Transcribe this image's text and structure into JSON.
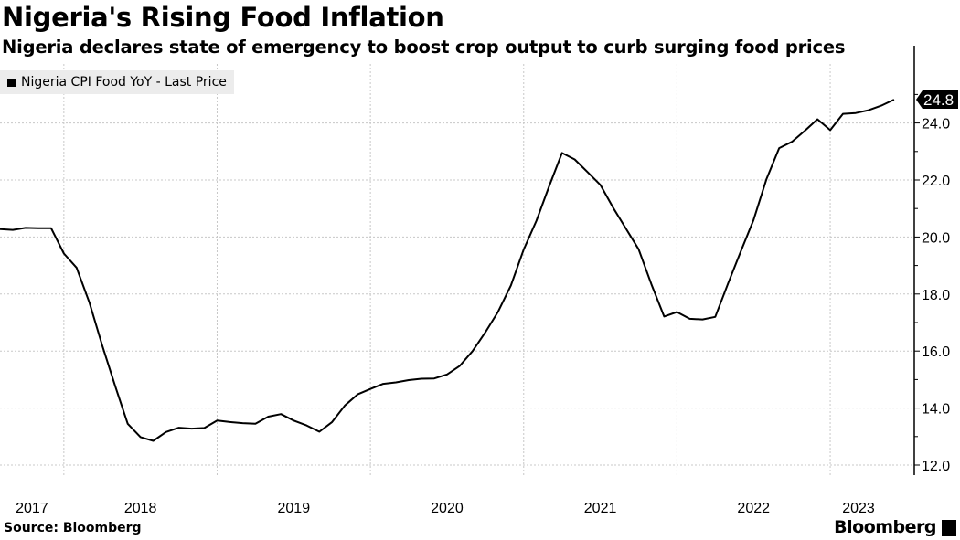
{
  "title": "Nigeria's Rising Food Inflation",
  "subtitle": "Nigeria declares state of emergency to boost crop output to curb surging food prices",
  "source": "Source: Bloomberg",
  "brand": "Bloomberg",
  "chart_data": {
    "type": "line",
    "legend": "Nigeria CPI Food YoY - Last Price",
    "legend_placement": "top-left",
    "last_value_label": "24.8",
    "line_color": "#000000",
    "grid": true,
    "y_axis_side": "right",
    "ylim": [
      11.7,
      25.2
    ],
    "yticks": [
      "12.0",
      "14.0",
      "16.0",
      "18.0",
      "20.0",
      "22.0",
      "24.0"
    ],
    "xtick_labels": [
      "2017",
      "2018",
      "2019",
      "2020",
      "2021",
      "2022",
      "2023"
    ],
    "x_start": "2017-07",
    "x_end": "2023-05",
    "series": [
      {
        "name": "Nigeria CPI Food YoY - Last Price",
        "x": [
          "2017-07",
          "2017-08",
          "2017-09",
          "2017-10",
          "2017-11",
          "2017-12",
          "2018-01",
          "2018-02",
          "2018-03",
          "2018-04",
          "2018-05",
          "2018-06",
          "2018-07",
          "2018-08",
          "2018-09",
          "2018-10",
          "2018-11",
          "2018-12",
          "2019-01",
          "2019-02",
          "2019-03",
          "2019-04",
          "2019-05",
          "2019-06",
          "2019-07",
          "2019-08",
          "2019-09",
          "2019-10",
          "2019-11",
          "2019-12",
          "2020-01",
          "2020-02",
          "2020-03",
          "2020-04",
          "2020-05",
          "2020-06",
          "2020-07",
          "2020-08",
          "2020-09",
          "2020-10",
          "2020-11",
          "2020-12",
          "2021-01",
          "2021-02",
          "2021-03",
          "2021-04",
          "2021-05",
          "2021-06",
          "2021-07",
          "2021-08",
          "2021-09",
          "2021-10",
          "2021-11",
          "2021-12",
          "2022-01",
          "2022-02",
          "2022-03",
          "2022-04",
          "2022-05",
          "2022-06",
          "2022-07",
          "2022-08",
          "2022-09",
          "2022-10",
          "2022-11",
          "2022-12",
          "2023-01",
          "2023-02",
          "2023-03",
          "2023-04",
          "2023-05"
        ],
        "values": [
          20.28,
          20.25,
          20.32,
          20.31,
          20.31,
          19.42,
          18.92,
          17.7,
          16.2,
          14.8,
          13.45,
          12.98,
          12.85,
          13.16,
          13.31,
          13.28,
          13.3,
          13.56,
          13.51,
          13.47,
          13.45,
          13.7,
          13.79,
          13.56,
          13.39,
          13.17,
          13.51,
          14.09,
          14.48,
          14.67,
          14.85,
          14.9,
          14.98,
          15.03,
          15.04,
          15.18,
          15.48,
          16.0,
          16.66,
          17.38,
          18.3,
          19.56,
          20.57,
          21.79,
          22.95,
          22.72,
          22.28,
          21.83,
          21.03,
          20.3,
          19.57,
          18.34,
          17.21,
          17.37,
          17.13,
          17.11,
          17.2,
          18.37,
          19.5,
          20.6,
          22.02,
          23.12,
          23.34,
          23.72,
          24.13,
          23.75,
          24.32,
          24.35,
          24.45,
          24.61,
          24.82
        ]
      }
    ]
  }
}
